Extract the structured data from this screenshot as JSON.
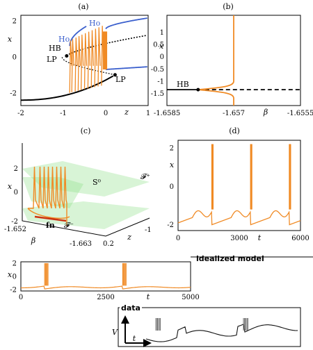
{
  "colors": {
    "orange": "#f08a24",
    "blue": "#3a5fcd",
    "black": "#000000",
    "green": "#8fe08a"
  },
  "chart_data": [
    {
      "id": "a",
      "type": "line",
      "panel_label": "(a)",
      "xlabel": "z",
      "ylabel": "x",
      "xlim": [
        -2,
        1
      ],
      "ylim": [
        -2.7,
        2.3
      ],
      "xticks": [
        "-2",
        "-1",
        "0",
        "1"
      ],
      "yticks": [
        "2",
        "0",
        "-2"
      ],
      "annotations": [
        "Ho",
        "Ho",
        "HB",
        "LP",
        "LP"
      ],
      "series": [
        {
          "style": "stable-lower-branch",
          "x": [
            -2,
            -1.5,
            -1,
            -0.5,
            0,
            0.2,
            0.22
          ],
          "y": [
            -2.4,
            -2.3,
            -2.15,
            -1.95,
            -1.55,
            -1.2,
            -1.0
          ]
        },
        {
          "style": "unstable-middle-branch",
          "x": [
            -0.9,
            -0.5,
            0,
            0.5,
            1
          ],
          "y": [
            0.1,
            0.4,
            0.7,
            0.95,
            1.15
          ]
        }
      ]
    },
    {
      "id": "b",
      "type": "line",
      "panel_label": "(b)",
      "xlabel": "β",
      "ylabel": "x",
      "xlim": [
        -1.6585,
        -1.6555
      ],
      "ylim": [
        -2.0,
        1.7
      ],
      "xticks": [
        "-1.6585",
        "-1.657",
        "-1.6555"
      ],
      "yticks": [
        "1",
        "0.5",
        "0",
        "-0.5",
        "-1",
        "-1.5"
      ],
      "annotations": [
        "HB"
      ]
    },
    {
      "id": "c",
      "type": "line",
      "panel_label": "(c)",
      "xlabel": "z",
      "ylabel": "x",
      "zlabel": "β",
      "xticks": [
        "0.2",
        "-1"
      ],
      "yticks": [
        "2",
        "0",
        "-2"
      ],
      "zticks": [
        "-1.652",
        "-1.663"
      ],
      "annotations": [
        "S⁰",
        "𝓕⁺",
        "𝓕⁻",
        "fn"
      ]
    },
    {
      "id": "d",
      "type": "line",
      "panel_label": "(d)",
      "xlabel": "t",
      "ylabel": "x",
      "xlim": [
        0,
        6000
      ],
      "ylim": [
        -2.3,
        2.4
      ],
      "xticks": [
        "0",
        "3000",
        "6000"
      ],
      "yticks": [
        "2",
        "0",
        "-2"
      ],
      "burst_times": [
        1650,
        3550,
        5450
      ]
    },
    {
      "id": "idealized",
      "type": "line",
      "title": "idealized model",
      "xlabel": "t",
      "ylabel": "x",
      "xlim": [
        0,
        5000
      ],
      "ylim": [
        -2.2,
        2.2
      ],
      "xticks": [
        "0",
        "2500",
        "5000"
      ],
      "yticks": [
        "2",
        "0",
        "-2"
      ],
      "burst_times": [
        700,
        3000
      ]
    },
    {
      "id": "data",
      "type": "line",
      "title": "data",
      "xlabel": "t",
      "ylabel": "V"
    }
  ]
}
